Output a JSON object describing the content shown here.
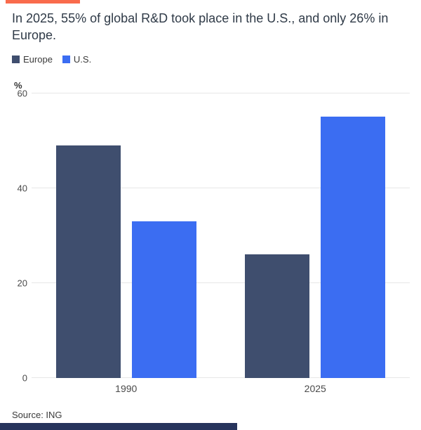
{
  "accents": {
    "top_bar_color": "#f96b4c",
    "bottom_bar_color": "#27345c"
  },
  "header": {
    "title": "In 2025, 55% of global R&D took place in the U.S., and only 26% in Europe."
  },
  "legend": [
    {
      "label": "Europe",
      "color": "#3f4e6e"
    },
    {
      "label": "U.S.",
      "color": "#3b6df2"
    }
  ],
  "chart_data": {
    "type": "bar",
    "categories": [
      "1990",
      "2025"
    ],
    "series": [
      {
        "name": "Europe",
        "color": "#3f4e6e",
        "values": [
          49,
          26
        ]
      },
      {
        "name": "U.S.",
        "color": "#3b6df2",
        "values": [
          33,
          55
        ]
      }
    ],
    "title": "In 2025, 55% of global R&D took place in the U.S., and only 26% in Europe.",
    "xlabel": "",
    "ylabel": "%",
    "ylim": [
      0,
      60
    ],
    "yticks": [
      0,
      20,
      40,
      60
    ],
    "grid": true,
    "legend_position": "top-left"
  },
  "footer": {
    "source": "Source: ING"
  }
}
